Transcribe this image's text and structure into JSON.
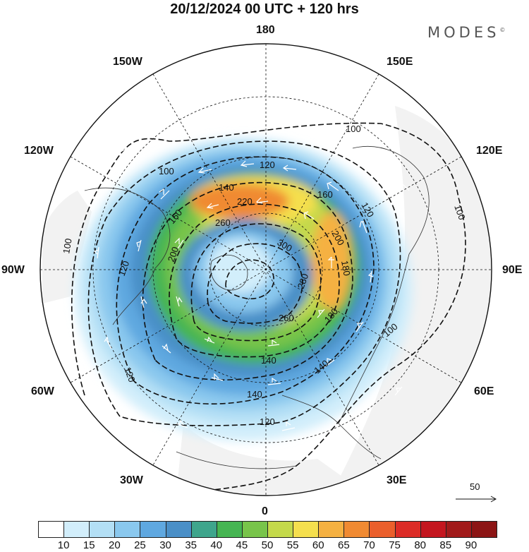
{
  "header": {
    "title": "20/12/2024  00 UTC  + 120 hrs",
    "brand": "MODES",
    "brand_mark": "©"
  },
  "map": {
    "projection": "polar stereographic, north pole centered",
    "longitude_labels": {
      "top": "180",
      "top_left": "150W",
      "top_right": "150E",
      "upper_left": "120W",
      "upper_right": "120E",
      "left": "90W",
      "right": "90E",
      "lower_left": "60W",
      "lower_right": "60E",
      "bottom_left": "30W",
      "bottom_right": "30E",
      "bottom": "0"
    },
    "contour_labels": [
      "100",
      "100",
      "100",
      "100",
      "100",
      "120",
      "120",
      "120",
      "120",
      "120",
      "140",
      "140",
      "140",
      "140",
      "160",
      "160",
      "180",
      "180",
      "200",
      "200",
      "220",
      "260",
      "260",
      "280",
      "300"
    ],
    "contour_values": [
      100,
      120,
      140,
      160,
      180,
      200,
      220,
      240,
      260,
      280,
      300
    ],
    "colors": {
      "land_outside": "#f2f2f2",
      "contour_line": "#111111",
      "wind_arrow": "#ffffff"
    }
  },
  "wind_reference": {
    "label": "50"
  },
  "colorbar": {
    "levels": [
      "10",
      "15",
      "20",
      "25",
      "30",
      "35",
      "40",
      "45",
      "50",
      "55",
      "60",
      "65",
      "70",
      "75",
      "80",
      "85",
      "90"
    ],
    "colors": [
      "#ffffff",
      "#d2eefb",
      "#b3dff5",
      "#8ac8ee",
      "#5fa8e0",
      "#4a8fc7",
      "#3ea58c",
      "#46b552",
      "#78c44a",
      "#c4d94b",
      "#f5df4e",
      "#f5b142",
      "#f08a32",
      "#ea5f2c",
      "#dc2c27",
      "#c4161f",
      "#a11a1a",
      "#8c1515"
    ]
  }
}
